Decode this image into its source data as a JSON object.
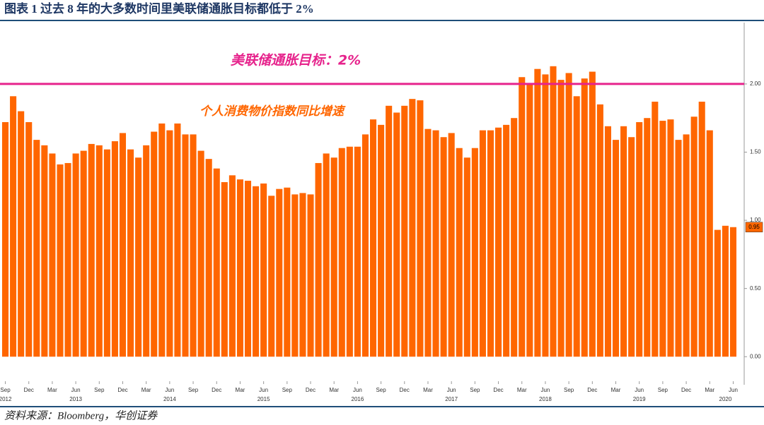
{
  "header": {
    "title": "图表 1  过去 8 年的大多数时间里美联储通胀目标都低于 2%"
  },
  "chart_data": {
    "type": "bar",
    "categories": [
      "Sep",
      null,
      null,
      "Dec",
      null,
      null,
      "Mar",
      null,
      null,
      "Jun",
      null,
      null,
      "Sep",
      null,
      null,
      "Dec",
      null,
      null,
      "Mar",
      null,
      null,
      "Jun",
      null,
      null,
      "Sep",
      null,
      null,
      "Dec",
      null,
      null,
      "Mar",
      null,
      null,
      "Jun",
      null,
      null,
      "Sep",
      null,
      null,
      "Dec",
      null,
      null,
      "Mar",
      null,
      null,
      "Jun",
      null,
      null,
      "Sep",
      null,
      null,
      "Dec",
      null,
      null,
      "Mar",
      null,
      null,
      "Jun",
      null,
      null,
      "Sep",
      null,
      null,
      "Dec",
      null,
      null,
      "Mar",
      null,
      null,
      "Jun",
      null,
      null,
      "Sep",
      null,
      null,
      "Dec",
      null,
      null,
      "Mar",
      null,
      null,
      "Jun",
      null,
      null,
      "Sep",
      null,
      null,
      "Dec",
      null,
      null,
      "Mar",
      null,
      null,
      "Jun"
    ],
    "years": [
      "2012",
      null,
      null,
      null,
      null,
      null,
      null,
      null,
      null,
      "2013",
      null,
      null,
      null,
      null,
      null,
      null,
      null,
      null,
      null,
      null,
      null,
      "2014",
      null,
      null,
      null,
      null,
      null,
      null,
      null,
      null,
      null,
      null,
      null,
      "2015",
      null,
      null,
      null,
      null,
      null,
      null,
      null,
      null,
      null,
      null,
      null,
      "2016",
      null,
      null,
      null,
      null,
      null,
      null,
      null,
      null,
      null,
      null,
      null,
      "2017",
      null,
      null,
      null,
      null,
      null,
      null,
      null,
      null,
      null,
      null,
      null,
      "2018",
      null,
      null,
      null,
      null,
      null,
      null,
      null,
      null,
      null,
      null,
      null,
      "2019",
      null,
      null,
      null,
      null,
      null,
      null,
      null,
      null,
      null,
      null,
      "2020",
      null,
      null
    ],
    "series": [
      {
        "name": "个人消费物价指数同比增速",
        "color": "#ff6600",
        "values": [
          1.72,
          1.91,
          1.8,
          1.72,
          1.59,
          1.55,
          1.49,
          1.41,
          1.42,
          1.49,
          1.51,
          1.56,
          1.55,
          1.52,
          1.58,
          1.64,
          1.52,
          1.46,
          1.55,
          1.65,
          1.71,
          1.66,
          1.71,
          1.63,
          1.63,
          1.51,
          1.45,
          1.38,
          1.28,
          1.33,
          1.3,
          1.29,
          1.25,
          1.27,
          1.18,
          1.23,
          1.24,
          1.19,
          1.2,
          1.19,
          1.42,
          1.49,
          1.46,
          1.53,
          1.54,
          1.54,
          1.63,
          1.74,
          1.7,
          1.84,
          1.79,
          1.84,
          1.89,
          1.88,
          1.67,
          1.66,
          1.61,
          1.64,
          1.53,
          1.46,
          1.53,
          1.66,
          1.66,
          1.68,
          1.7,
          1.75,
          2.05,
          2.0,
          2.11,
          2.07,
          2.13,
          2.03,
          2.08,
          1.91,
          2.04,
          2.09,
          1.85,
          1.69,
          1.59,
          1.69,
          1.61,
          1.72,
          1.75,
          1.87,
          1.73,
          1.74,
          1.59,
          1.63,
          1.76,
          1.87,
          1.66,
          0.93,
          0.96,
          0.95
        ]
      }
    ],
    "reference_line": {
      "value": 2,
      "label": "美联储通胀目标：2%",
      "color": "#e6238c"
    },
    "last_value": {
      "value": 0.95,
      "label": "0.95"
    },
    "ylim": [
      -0.18,
      2.45
    ],
    "yticks": [
      {
        "value": 0,
        "label": "0.00"
      },
      {
        "value": 0.5,
        "label": "0.50"
      },
      {
        "value": 1,
        "label": "1.00"
      },
      {
        "value": 1.5,
        "label": "1.50"
      },
      {
        "value": 2,
        "label": "2.00"
      }
    ]
  },
  "footer": {
    "source": "资料来源：Bloomberg，华创证券"
  }
}
